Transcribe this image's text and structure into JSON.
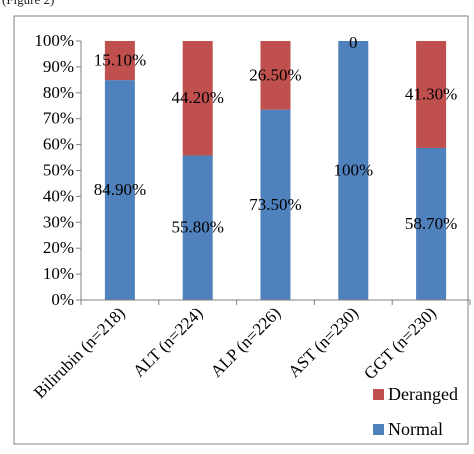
{
  "caption_fragment": "(Figure 2)",
  "chart_data": {
    "type": "bar",
    "stacked": true,
    "percent_stacked": true,
    "categories": [
      "Bilirubin (n=218)",
      "ALT (n=224)",
      "ALP (n=226)",
      "AST (n=230)",
      "GGT (n=230)"
    ],
    "series": [
      {
        "name": "Normal",
        "values": [
          84.9,
          55.8,
          73.5,
          100,
          58.7
        ],
        "labels": [
          "84.90%",
          "55.80%",
          "73.50%",
          "100%",
          "58.70%"
        ],
        "color": "#4F81BD"
      },
      {
        "name": "Deranged",
        "values": [
          15.1,
          44.2,
          26.5,
          0,
          41.3
        ],
        "labels": [
          "15.10%",
          "44.20%",
          "26.50%",
          "0",
          "41.30%"
        ],
        "color": "#C0504D"
      }
    ],
    "y_ticks": [
      "0%",
      "10%",
      "20%",
      "30%",
      "40%",
      "50%",
      "60%",
      "70%",
      "80%",
      "90%",
      "100%"
    ],
    "ylim": [
      0,
      100
    ],
    "grid": false,
    "legend_position": "bottom-right",
    "legend": [
      {
        "name": "Deranged",
        "color": "#C0504D"
      },
      {
        "name": "Normal",
        "color": "#4F81BD"
      }
    ],
    "colors": {
      "normal": "#4F81BD",
      "deranged": "#C0504D",
      "axis": "#808080",
      "border": "#808080"
    }
  }
}
